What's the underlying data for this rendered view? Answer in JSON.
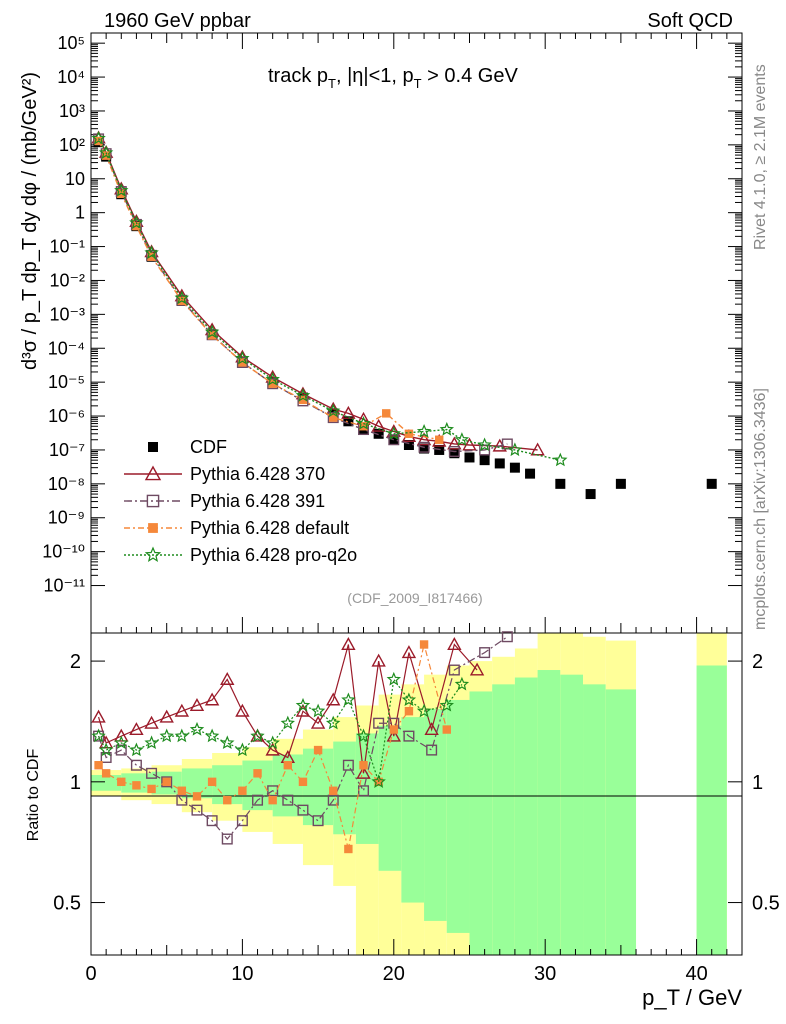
{
  "header": {
    "left": "1960 GeV ppbar",
    "right": "Soft QCD"
  },
  "side_labels": {
    "rivet": "Rivet 4.1.0, ≥ 2.1M events",
    "site": "mcplots.cern.ch [arXiv:1306.3436]"
  },
  "colors": {
    "cdf": "#000000",
    "p370": "#9b1b2a",
    "p391": "#6e4a62",
    "pdefault": "#f5883a",
    "pq2o": "#1e8c1e",
    "band_yellow": "#ffff99",
    "band_green": "#99ff99"
  },
  "chart_data": [
    {
      "id": "main",
      "type": "scatter",
      "title": "track pT, |η|<1, pT > 0.4 GeV",
      "title_parts": {
        "a": "track p",
        "sub1": "T",
        "b": ", |η|<1, p",
        "sub2": "T",
        "c": " > 0.4 GeV"
      },
      "analysis_tag": "(CDF_2009_I817466)",
      "ylabel": "d³σ / p_T dp_T dy dφ / (mb/GeV²)",
      "xlim": [
        0,
        43
      ],
      "ylim_log10": [
        -12.4,
        5.3
      ],
      "ytick_labels": [
        "10⁻¹¹",
        "10⁻¹⁰",
        "10⁻⁹",
        "10⁻⁸",
        "10⁻⁷",
        "10⁻⁶",
        "10⁻⁵",
        "10⁻⁴",
        "10⁻³",
        "10⁻²",
        "10⁻¹",
        "1",
        "10",
        "10²",
        "10³",
        "10⁴",
        "10⁵"
      ],
      "ytick_exps": [
        -11,
        -10,
        -9,
        -8,
        -7,
        -6,
        -5,
        -4,
        -3,
        -2,
        -1,
        0,
        1,
        2,
        3,
        4,
        5
      ],
      "legend": [
        {
          "key": "cdf",
          "label": "CDF"
        },
        {
          "key": "p370",
          "label": "Pythia 6.428 370"
        },
        {
          "key": "p391",
          "label": "Pythia 6.428 391"
        },
        {
          "key": "pdefault",
          "label": "Pythia 6.428 default"
        },
        {
          "key": "pq2o",
          "label": "Pythia 6.428 pro-q2o"
        }
      ],
      "series": [
        {
          "name": "CDF",
          "key": "cdf",
          "x": [
            0.5,
            1,
            2,
            3,
            4,
            6,
            8,
            10,
            12,
            14,
            16,
            17,
            18,
            19,
            20,
            21,
            22,
            23,
            24,
            25,
            26,
            27,
            28,
            29,
            31,
            33,
            35,
            41
          ],
          "y": [
            120,
            45,
            3.5,
            0.4,
            0.05,
            0.0025,
            0.00025,
            4e-05,
            1e-05,
            3.5e-06,
            1.2e-06,
            7e-07,
            4e-07,
            3e-07,
            2e-07,
            1.4e-07,
            1.1e-07,
            1e-07,
            8e-08,
            6e-08,
            5e-08,
            4e-08,
            3e-08,
            2e-08,
            1e-08,
            5e-09,
            1e-08,
            1e-08
          ]
        },
        {
          "name": "Pythia 6.428 370",
          "key": "p370",
          "x": [
            0.5,
            1,
            2,
            3,
            4,
            6,
            8,
            10,
            12,
            14,
            16,
            17,
            18,
            19,
            20,
            21,
            22,
            23,
            24,
            25,
            27,
            29.5
          ],
          "y": [
            160,
            60,
            5,
            0.55,
            0.07,
            0.0035,
            0.00035,
            5.5e-05,
            1.4e-05,
            4.5e-06,
            1.6e-06,
            1.2e-06,
            8e-07,
            5e-07,
            3.5e-07,
            2.5e-07,
            2e-07,
            1.8e-07,
            1.5e-07,
            1.4e-07,
            1.3e-07,
            1e-07
          ]
        },
        {
          "name": "Pythia 6.428 391",
          "key": "p391",
          "x": [
            0.5,
            1,
            2,
            3,
            4,
            6,
            8,
            10,
            12,
            14,
            16,
            18,
            20,
            22,
            24,
            26,
            27.5
          ],
          "y": [
            150,
            55,
            4.2,
            0.45,
            0.055,
            0.0026,
            0.00025,
            3.8e-05,
            9e-06,
            2.8e-06,
            9e-07,
            4e-07,
            2e-07,
            1.2e-07,
            9e-08,
            1e-07,
            1.5e-07
          ]
        },
        {
          "name": "Pythia 6.428 default",
          "key": "pdefault",
          "x": [
            0.5,
            1,
            2,
            3,
            4,
            6,
            8,
            10,
            12,
            14,
            16,
            18,
            19.5,
            21,
            23
          ],
          "y": [
            130,
            48,
            3.6,
            0.4,
            0.05,
            0.0025,
            0.00024,
            3.8e-05,
            9e-06,
            3e-06,
            9e-07,
            5e-07,
            1.2e-06,
            3e-07,
            2e-07
          ]
        },
        {
          "name": "Pythia 6.428 pro-q2o",
          "key": "pq2o",
          "x": [
            0.5,
            1,
            2,
            3,
            4,
            6,
            8,
            10,
            12,
            14,
            16,
            18,
            20,
            22,
            23.5,
            24.5,
            26,
            28,
            31
          ],
          "y": [
            155,
            58,
            4.5,
            0.5,
            0.065,
            0.003,
            0.0003,
            5e-05,
            1.2e-05,
            4e-06,
            1.4e-06,
            6e-07,
            3e-07,
            3.5e-07,
            4e-07,
            2e-07,
            1.4e-07,
            1e-07,
            5e-08
          ]
        }
      ]
    },
    {
      "id": "ratio",
      "type": "scatter",
      "ylabel": "Ratio to CDF",
      "xlabel": "p_T / GeV",
      "xlim": [
        0,
        43
      ],
      "ylim": [
        0.37,
        2.35
      ],
      "ytick_labels": [
        "0.5",
        "1",
        "2"
      ],
      "ytick_values": [
        0.5,
        1,
        2
      ],
      "xtick_labels": [
        "0",
        "10",
        "20",
        "30",
        "40"
      ],
      "xtick_values": [
        0,
        10,
        20,
        30,
        40
      ],
      "bands": {
        "x_edges": [
          0,
          2,
          4,
          6,
          8,
          10,
          12,
          14,
          16,
          17.5,
          19,
          20.5,
          22,
          23.5,
          25,
          26.5,
          28,
          29.5,
          31,
          32.5,
          34,
          36,
          40,
          42
        ],
        "yellow_low": [
          0.92,
          0.9,
          0.88,
          0.84,
          0.8,
          0.75,
          0.7,
          0.62,
          0.55,
          0.37,
          0.37,
          0.37,
          0.37,
          0.37,
          0.37,
          0.37,
          0.37,
          0.37,
          0.37,
          0.37,
          0.37,
          null,
          0.37
        ],
        "yellow_high": [
          1.07,
          1.08,
          1.1,
          1.14,
          1.18,
          1.22,
          1.28,
          1.35,
          1.45,
          1.55,
          1.65,
          1.75,
          1.85,
          1.95,
          2.0,
          2.05,
          2.15,
          2.35,
          2.35,
          2.3,
          2.25,
          null,
          2.35
        ],
        "green_low": [
          0.95,
          0.94,
          0.93,
          0.91,
          0.88,
          0.85,
          0.82,
          0.78,
          0.74,
          0.7,
          0.6,
          0.5,
          0.45,
          0.42,
          0.37,
          0.37,
          0.37,
          0.37,
          0.37,
          0.37,
          0.37,
          null,
          0.37
        ],
        "green_high": [
          1.04,
          1.05,
          1.06,
          1.08,
          1.1,
          1.13,
          1.17,
          1.21,
          1.26,
          1.32,
          1.38,
          1.45,
          1.52,
          1.6,
          1.68,
          1.75,
          1.82,
          1.9,
          1.85,
          1.75,
          1.7,
          null,
          1.95
        ]
      },
      "series": [
        {
          "name": "Pythia 6.428 370",
          "key": "p370",
          "x": [
            0.5,
            1,
            2,
            3,
            4,
            5,
            6,
            7,
            8,
            9,
            10,
            11,
            12,
            13,
            14,
            15,
            16,
            17,
            18,
            19,
            20,
            21,
            22.5,
            24,
            25.5
          ],
          "y": [
            1.45,
            1.25,
            1.3,
            1.35,
            1.4,
            1.45,
            1.5,
            1.55,
            1.6,
            1.8,
            1.5,
            1.3,
            1.2,
            1.15,
            1.5,
            1.4,
            1.6,
            2.2,
            1.05,
            2.0,
            1.3,
            2.1,
            1.35,
            2.2,
            1.9
          ]
        },
        {
          "name": "Pythia 6.428 391",
          "key": "p391",
          "x": [
            0.5,
            1,
            2,
            3,
            4,
            5,
            6,
            7,
            8,
            9,
            10,
            11,
            12,
            13,
            14,
            15,
            16,
            17,
            18,
            19,
            20,
            21,
            22.5,
            24,
            26,
            27.5
          ],
          "y": [
            1.3,
            1.15,
            1.2,
            1.1,
            1.05,
            1.0,
            0.9,
            0.85,
            0.8,
            0.72,
            0.8,
            0.9,
            0.95,
            0.9,
            0.85,
            0.8,
            0.9,
            1.1,
            0.95,
            1.4,
            1.4,
            1.3,
            1.2,
            1.9,
            2.1,
            2.3
          ]
        },
        {
          "name": "Pythia 6.428 default",
          "key": "pdefault",
          "x": [
            0.5,
            1,
            2,
            3,
            4,
            5,
            6,
            7,
            8,
            9,
            10,
            11,
            12,
            13,
            14,
            15,
            16,
            17,
            18,
            19,
            20,
            21,
            22,
            23.5
          ],
          "y": [
            1.1,
            1.05,
            1.0,
            0.98,
            0.96,
            1.0,
            0.95,
            0.92,
            1.0,
            0.9,
            0.95,
            1.05,
            0.9,
            1.1,
            1.0,
            1.2,
            0.95,
            0.68,
            1.1,
            1.0,
            1.35,
            1.5,
            2.2,
            1.35
          ]
        },
        {
          "name": "Pythia 6.428 pro-q2o",
          "key": "pq2o",
          "x": [
            0.5,
            1,
            2,
            3,
            4,
            5,
            6,
            7,
            8,
            9,
            10,
            11,
            12,
            13,
            14,
            15,
            16,
            17,
            18,
            19,
            20,
            21,
            22,
            23.5,
            24.5
          ],
          "y": [
            1.3,
            1.2,
            1.25,
            1.2,
            1.25,
            1.3,
            1.3,
            1.35,
            1.3,
            1.25,
            1.2,
            1.3,
            1.25,
            1.4,
            1.55,
            1.5,
            1.4,
            1.6,
            1.3,
            1.0,
            1.8,
            1.6,
            1.5,
            1.55,
            1.75
          ]
        }
      ]
    }
  ]
}
